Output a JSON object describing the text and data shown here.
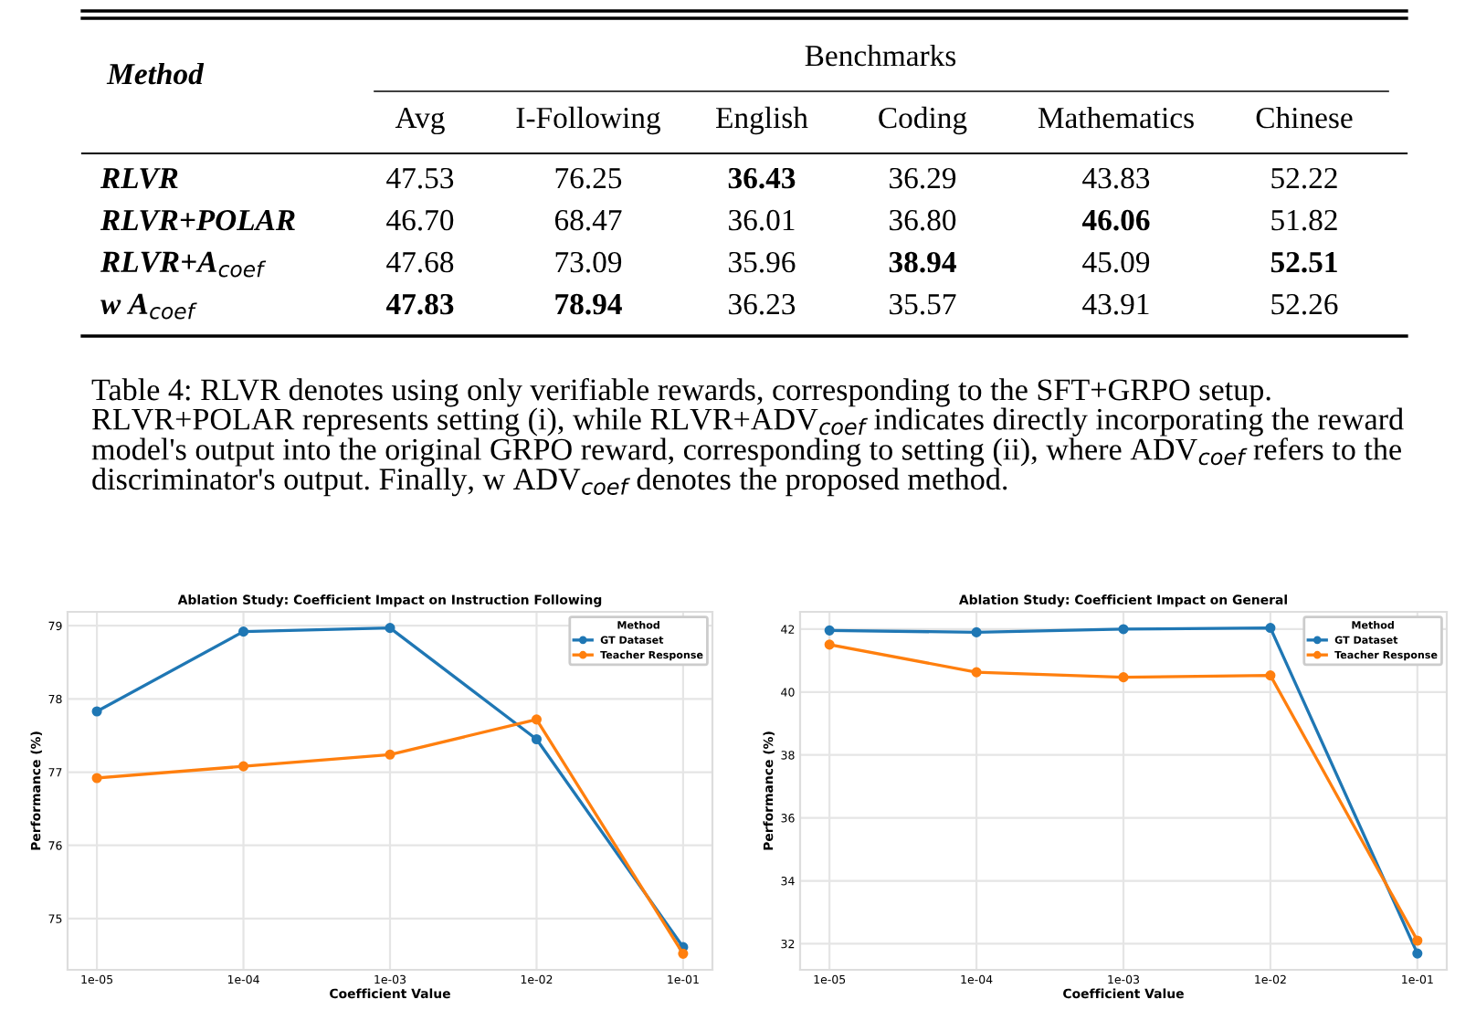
{
  "chart_data": [
    {
      "type": "other",
      "ylabel": "Method",
      "xlabel": "Benchmarks",
      "categories": [
        "Avg",
        "I-Following",
        "English",
        "Coding",
        "Mathematics",
        "Chinese"
      ],
      "y_categories": [
        "RLVR",
        "RLVR+POLAR",
        "RLVR+A$_{coef}$",
        "w A$_{coef}$"
      ],
      "cell_labels": [
        [
          "47.53",
          "76.25",
          "36.43",
          "36.29",
          "43.83",
          "52.22"
        ],
        [
          "46.70",
          "68.47",
          "36.01",
          "36.80",
          "46.06",
          "51.82"
        ],
        [
          "47.68",
          "73.09",
          "35.96",
          "38.94",
          "45.09",
          "52.51"
        ],
        [
          "47.83",
          "78.94",
          "36.23",
          "35.57",
          "43.91",
          "52.26"
        ]
      ],
      "annotations": [
        "Table 4: RLVR denotes using only verifiable rewards, corresponding to the SFT+GRPO setup. RLVR+POLAR represents setting (i), while RLVR+ADV$_{coef}$ indicates directly incorporating the reward model's output into the original GRPO reward, corresponding to setting (ii), where ADV$_{coef}$ refers to the discriminator's output. Finally, w ADV$_{coef}$ denotes the proposed method."
      ]
    },
    {
      "type": "line",
      "title": "Ablation Study: Coefficient Impact on Instruction Following",
      "xlabel": "Coefficient Value",
      "ylabel": "Performance (%)",
      "categories": [
        "1e-05",
        "1e-04",
        "1e-03",
        "1e-02",
        "1e-01"
      ],
      "ylim": [
        74.3,
        79.19
      ],
      "yticks": [
        75,
        76,
        77,
        78,
        79
      ],
      "grid": true,
      "legend": "top right",
      "legend_title": "Method",
      "marker": "circle",
      "line_style": "solid",
      "series": [
        {
          "name": "GT Dataset",
          "color": "#1f77b4",
          "values": [
            77.83,
            78.92,
            78.97,
            77.45,
            74.61
          ]
        },
        {
          "name": "Teacher Response",
          "color": "#ff7f0e",
          "values": [
            76.92,
            77.08,
            77.24,
            77.72,
            74.52
          ]
        }
      ]
    },
    {
      "type": "line",
      "title": "Ablation Study: Coefficient Impact on General",
      "xlabel": "Coefficient Value",
      "ylabel": "Performance (%)",
      "categories": [
        "1e-05",
        "1e-04",
        "1e-03",
        "1e-02",
        "1e-01"
      ],
      "ylim": [
        31.17,
        42.55
      ],
      "yticks": [
        32,
        34,
        36,
        38,
        40,
        42
      ],
      "grid": true,
      "legend": "top right",
      "legend_title": "Method",
      "marker": "circle",
      "line_style": "solid",
      "series": [
        {
          "name": "GT Dataset",
          "color": "#1f77b4",
          "values": [
            41.96,
            41.9,
            42.0,
            42.04,
            31.69
          ]
        },
        {
          "name": "Teacher Response",
          "color": "#ff7f0e",
          "values": [
            41.51,
            40.63,
            40.47,
            40.53,
            32.1
          ]
        }
      ]
    }
  ]
}
